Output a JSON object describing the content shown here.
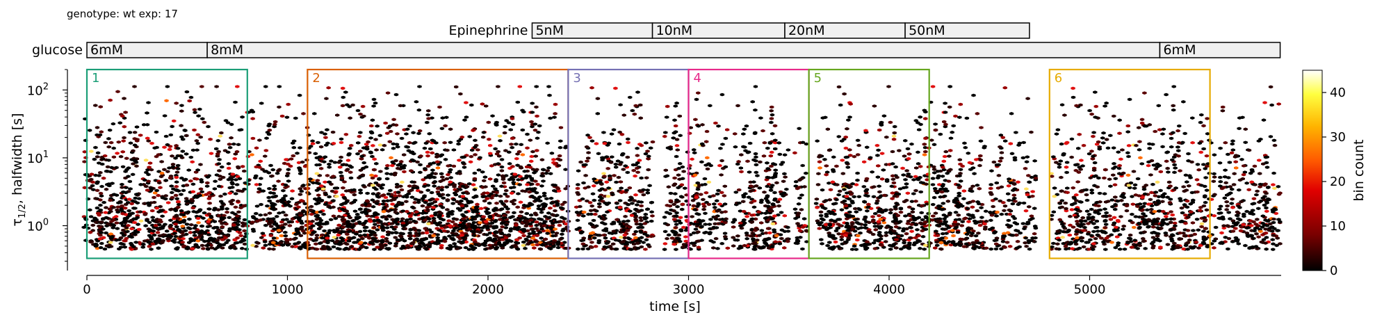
{
  "header": "genotype: wt  exp: 17",
  "colors": {
    "rect_colors": [
      "#1b9e77",
      "#d95f02",
      "#7570b3",
      "#e7298a",
      "#66a61e",
      "#e6ab02"
    ],
    "colormap": [
      "#000000",
      "#7a0000",
      "#e00000",
      "#ff5a00",
      "#ffb400",
      "#ffff40",
      "#ffffff"
    ]
  },
  "chart_data": {
    "type": "heatmap",
    "subtype": "hexbin",
    "xlabel": "time [s]",
    "ylabel_main": "τ",
    "ylabel_sub": "1/2",
    "ylabel_rest": ", halfwidth [s]",
    "xlim": [
      0,
      5600
    ],
    "ylim": [
      0.27,
      200
    ],
    "yscale": "log",
    "x_ticks": [
      {
        "value": 0,
        "label": "0"
      },
      {
        "value": 1000,
        "label": "1000"
      },
      {
        "value": 2000,
        "label": "2000"
      },
      {
        "value": 3000,
        "label": "3000"
      },
      {
        "value": 4000,
        "label": "4000"
      },
      {
        "value": 5000,
        "label": "5000"
      }
    ],
    "y_ticks": [
      {
        "value": 1,
        "base": "10",
        "exp": "0"
      },
      {
        "value": 10,
        "base": "10",
        "exp": "1"
      },
      {
        "value": 100,
        "base": "10",
        "exp": "2"
      }
    ],
    "colorbar": {
      "label": "bin count",
      "range": [
        0,
        45
      ],
      "ticks": [
        {
          "value": 0,
          "label": "0"
        },
        {
          "value": 10,
          "label": "10"
        },
        {
          "value": 20,
          "label": "20"
        },
        {
          "value": 30,
          "label": "30"
        },
        {
          "value": 40,
          "label": "40"
        }
      ]
    },
    "protocol": [
      {
        "label": "Epinephrine",
        "x_start": 2220,
        "x_end": 4700,
        "segments": [
          {
            "start": 2220,
            "end": 2820,
            "label": "5nM"
          },
          {
            "start": 2820,
            "end": 3480,
            "label": "10nM"
          },
          {
            "start": 3480,
            "end": 4080,
            "label": "20nM"
          },
          {
            "start": 4080,
            "end": 4700,
            "label": "50nM"
          }
        ]
      },
      {
        "label": "glucose",
        "x_start": 0,
        "x_end": 5950,
        "segments": [
          {
            "start": 0,
            "end": 600,
            "label": "6mM"
          },
          {
            "start": 600,
            "end": 5350,
            "label": "8mM"
          },
          {
            "start": 5350,
            "end": 5950,
            "label": "6mM"
          }
        ]
      }
    ],
    "regions": [
      {
        "label": "1",
        "x0": 0,
        "x1": 800,
        "y0": 0.33,
        "y1": 200
      },
      {
        "label": "2",
        "x0": 1100,
        "x1": 2400,
        "y0": 0.33,
        "y1": 200
      },
      {
        "label": "3",
        "x0": 2400,
        "x1": 3000,
        "y0": 0.33,
        "y1": 200
      },
      {
        "label": "4",
        "x0": 3000,
        "x1": 3600,
        "y0": 0.33,
        "y1": 200
      },
      {
        "label": "5",
        "x0": 3600,
        "x1": 4200,
        "y0": 0.33,
        "y1": 200
      },
      {
        "label": "6",
        "x0": 4800,
        "x1": 5600,
        "y0": 0.33,
        "y1": 200
      }
    ],
    "event_columns": [
      {
        "x": 30,
        "w": 1.0
      },
      {
        "x": 90,
        "w": 1.1
      },
      {
        "x": 150,
        "w": 1.3
      },
      {
        "x": 210,
        "w": 1.0
      },
      {
        "x": 270,
        "w": 1.2
      },
      {
        "x": 340,
        "w": 0.9
      },
      {
        "x": 400,
        "w": 1.2
      },
      {
        "x": 460,
        "w": 1.0
      },
      {
        "x": 510,
        "w": 1.5
      },
      {
        "x": 570,
        "w": 1.0
      },
      {
        "x": 640,
        "w": 0.9
      },
      {
        "x": 700,
        "w": 1.3
      },
      {
        "x": 760,
        "w": 1.1
      },
      {
        "x": 880,
        "w": 1.3
      },
      {
        "x": 950,
        "w": 1.0
      },
      {
        "x": 1020,
        "w": 1.4
      },
      {
        "x": 1090,
        "w": 0.8
      },
      {
        "x": 1150,
        "w": 1.3
      },
      {
        "x": 1210,
        "w": 1.4
      },
      {
        "x": 1280,
        "w": 1.2
      },
      {
        "x": 1340,
        "w": 1.5
      },
      {
        "x": 1410,
        "w": 1.2
      },
      {
        "x": 1480,
        "w": 1.6
      },
      {
        "x": 1530,
        "w": 1.3
      },
      {
        "x": 1600,
        "w": 1.4
      },
      {
        "x": 1660,
        "w": 1.2
      },
      {
        "x": 1730,
        "w": 1.3
      },
      {
        "x": 1790,
        "w": 1.6
      },
      {
        "x": 1850,
        "w": 1.2
      },
      {
        "x": 1920,
        "w": 1.4
      },
      {
        "x": 1980,
        "w": 1.5
      },
      {
        "x": 2040,
        "w": 1.3
      },
      {
        "x": 2100,
        "w": 1.5
      },
      {
        "x": 2170,
        "w": 1.2
      },
      {
        "x": 2230,
        "w": 1.3
      },
      {
        "x": 2290,
        "w": 1.4
      },
      {
        "x": 2350,
        "w": 1.2
      },
      {
        "x": 2480,
        "w": 0.9
      },
      {
        "x": 2560,
        "w": 1.1
      },
      {
        "x": 2640,
        "w": 1.4
      },
      {
        "x": 2710,
        "w": 1.3
      },
      {
        "x": 2780,
        "w": 1.0
      },
      {
        "x": 2920,
        "w": 0.9
      },
      {
        "x": 2990,
        "w": 1.4
      },
      {
        "x": 3070,
        "w": 1.0
      },
      {
        "x": 3160,
        "w": 0.8
      },
      {
        "x": 3280,
        "w": 1.3
      },
      {
        "x": 3370,
        "w": 1.4
      },
      {
        "x": 3440,
        "w": 1.3
      },
      {
        "x": 3560,
        "w": 0.7
      },
      {
        "x": 3680,
        "w": 1.0
      },
      {
        "x": 3760,
        "w": 1.3
      },
      {
        "x": 3830,
        "w": 1.3
      },
      {
        "x": 3920,
        "w": 1.0
      },
      {
        "x": 3990,
        "w": 1.1
      },
      {
        "x": 4060,
        "w": 1.3
      },
      {
        "x": 4140,
        "w": 1.1
      },
      {
        "x": 4230,
        "w": 1.2
      },
      {
        "x": 4290,
        "w": 1.5
      },
      {
        "x": 4370,
        "w": 1.2
      },
      {
        "x": 4450,
        "w": 0.8
      },
      {
        "x": 4540,
        "w": 0.9
      },
      {
        "x": 4620,
        "w": 0.8
      },
      {
        "x": 4700,
        "w": 0.7
      },
      {
        "x": 4850,
        "w": 0.9
      },
      {
        "x": 4920,
        "w": 0.9
      },
      {
        "x": 4990,
        "w": 1.3
      },
      {
        "x": 5060,
        "w": 1.0
      },
      {
        "x": 5140,
        "w": 0.8
      },
      {
        "x": 5230,
        "w": 1.0
      },
      {
        "x": 5300,
        "w": 1.2
      },
      {
        "x": 5370,
        "w": 1.2
      },
      {
        "x": 5440,
        "w": 0.9
      },
      {
        "x": 5520,
        "w": 1.1
      },
      {
        "x": 5600,
        "w": 0.7
      },
      {
        "x": 5680,
        "w": 0.8
      },
      {
        "x": 5760,
        "w": 1.2
      },
      {
        "x": 5840,
        "w": 1.0
      },
      {
        "x": 5910,
        "w": 0.9
      }
    ]
  }
}
